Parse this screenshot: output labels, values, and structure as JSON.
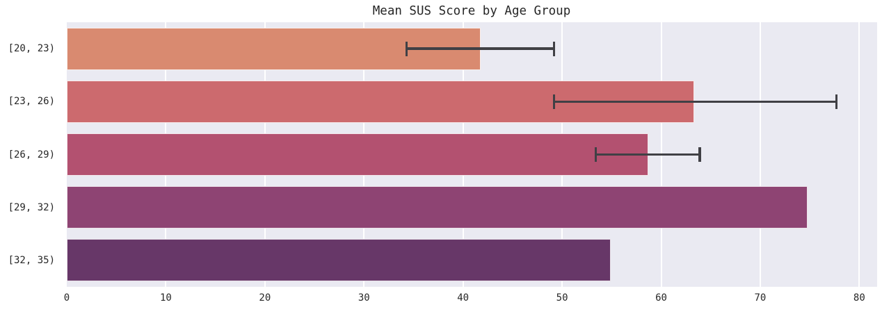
{
  "title": "Mean SUS Score by Age Group",
  "colors": {
    "figure_bg": "#ffffff",
    "plot_bg": "#eaeaf2",
    "grid": "#ffffff",
    "error_bar": "#404045",
    "text": "#262626"
  },
  "chart_data": {
    "type": "bar",
    "orientation": "horizontal",
    "title": "Mean SUS Score by Age Group",
    "xlabel": "",
    "ylabel": "",
    "categories": [
      "[20, 23)",
      "[23, 26)",
      "[26, 29)",
      "[29, 32)",
      "[32, 35)"
    ],
    "values": [
      41.8,
      63.3,
      58.7,
      74.8,
      54.9
    ],
    "error_bars": [
      {
        "low": 34.3,
        "high": 49.2
      },
      {
        "low": 49.2,
        "high": 77.7
      },
      {
        "low": 53.4,
        "high": 63.9
      },
      null,
      null
    ],
    "bar_colors": [
      "#d98a70",
      "#cc6a6e",
      "#b35170",
      "#8e4473",
      "#673768"
    ],
    "xlim": [
      0,
      81.8
    ],
    "x_ticks": [
      0,
      10,
      20,
      30,
      40,
      50,
      60,
      70,
      80
    ],
    "grid": true,
    "legend": false
  }
}
